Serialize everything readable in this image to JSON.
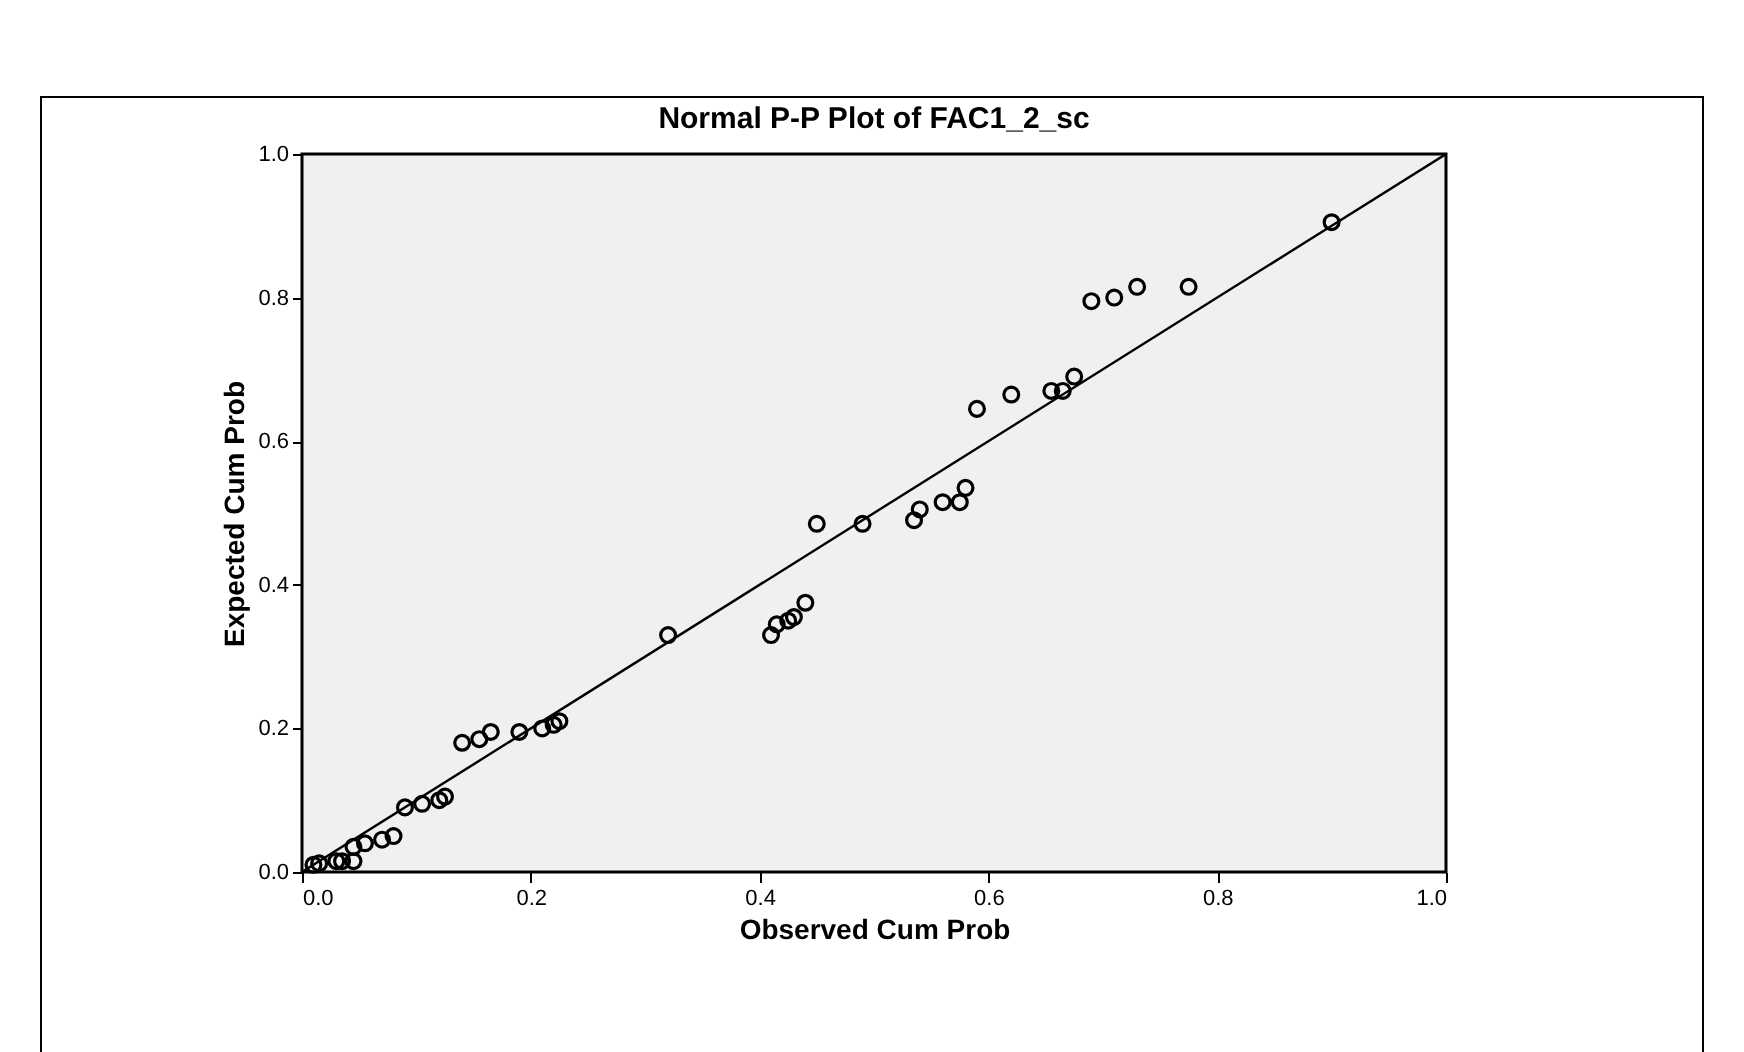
{
  "chart_data": {
    "type": "scatter",
    "title": "Normal P-P Plot of FAC1_2_sc",
    "xlabel": "Observed Cum Prob",
    "ylabel": "Expected Cum Prob",
    "xlim": [
      0,
      1
    ],
    "ylim": [
      0,
      1
    ],
    "xticks": [
      {
        "value": 0,
        "label": "0.0"
      },
      {
        "value": 0.2,
        "label": "0.2"
      },
      {
        "value": 0.4,
        "label": "0.4"
      },
      {
        "value": 0.6,
        "label": "0.6"
      },
      {
        "value": 0.8,
        "label": "0.8"
      },
      {
        "value": 1,
        "label": "1.0"
      }
    ],
    "yticks": [
      {
        "value": 0,
        "label": "0.0"
      },
      {
        "value": 0.2,
        "label": "0.2"
      },
      {
        "value": 0.4,
        "label": "0.4"
      },
      {
        "value": 0.6,
        "label": "0.6"
      },
      {
        "value": 0.8,
        "label": "0.8"
      },
      {
        "value": 1,
        "label": "1.0"
      }
    ],
    "grid": false,
    "series": [
      {
        "color": "#000000",
        "marker": "circle",
        "x": [
          0.01,
          0.015,
          0.03,
          0.035,
          0.045,
          0.045,
          0.055,
          0.07,
          0.08,
          0.09,
          0.105,
          0.12,
          0.125,
          0.14,
          0.155,
          0.165,
          0.19,
          0.21,
          0.22,
          0.225,
          0.32,
          0.41,
          0.415,
          0.425,
          0.43,
          0.44,
          0.45,
          0.49,
          0.535,
          0.54,
          0.56,
          0.575,
          0.58,
          0.59,
          0.62,
          0.655,
          0.665,
          0.675,
          0.69,
          0.71,
          0.73,
          0.775,
          0.9
        ],
        "values": [
          0.01,
          0.012,
          0.015,
          0.015,
          0.015,
          0.035,
          0.04,
          0.045,
          0.05,
          0.09,
          0.095,
          0.1,
          0.105,
          0.18,
          0.185,
          0.195,
          0.195,
          0.2,
          0.205,
          0.21,
          0.33,
          0.33,
          0.345,
          0.35,
          0.355,
          0.375,
          0.485,
          0.485,
          0.49,
          0.505,
          0.515,
          0.515,
          0.535,
          0.645,
          0.665,
          0.67,
          0.67,
          0.69,
          0.795,
          0.8,
          0.815,
          0.815,
          0.905
        ]
      },
      {
        "type": "line",
        "color": "#000000",
        "x": [
          0,
          1
        ],
        "values": [
          0,
          1
        ],
        "line_style": "solid"
      }
    ]
  }
}
